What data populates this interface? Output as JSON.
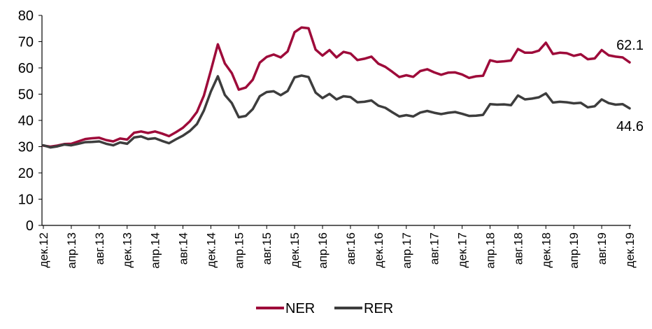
{
  "chart_data": {
    "type": "line",
    "title": "",
    "xlabel": "",
    "ylabel": "",
    "ylim": [
      0,
      80
    ],
    "yticks": [
      0,
      10,
      20,
      30,
      40,
      50,
      60,
      70,
      80
    ],
    "grid": false,
    "legend_position": "bottom-center",
    "x_tick_labels": [
      "дек.12",
      "апр.13",
      "авг.13",
      "дек.13",
      "апр.14",
      "авг.14",
      "дек.14",
      "апр.15",
      "авг.15",
      "дек.15",
      "апр.16",
      "авг.16",
      "дек.16",
      "апр.17",
      "авг.17",
      "дек.17",
      "апр.18",
      "авг.18",
      "дек.18",
      "апр.19",
      "авг.19",
      "дек.19"
    ],
    "annotations": [
      {
        "series": "NER",
        "text": "62.1"
      },
      {
        "series": "RER",
        "text": "44.6"
      }
    ],
    "series": [
      {
        "name": "NER",
        "color": "#9E0B3A",
        "values": [
          30.4,
          30.0,
          30.4,
          31.0,
          31.1,
          32.0,
          32.9,
          33.2,
          33.4,
          32.5,
          32.0,
          33.1,
          32.7,
          35.3,
          35.8,
          35.2,
          35.8,
          35.0,
          34.0,
          35.5,
          37.2,
          39.7,
          43.2,
          49.5,
          59.0,
          69.0,
          61.7,
          58.0,
          51.7,
          52.5,
          55.5,
          62.0,
          64.2,
          65.1,
          64.0,
          66.3,
          73.6,
          75.4,
          75.1,
          67.0,
          64.7,
          66.8,
          64.0,
          66.1,
          65.5,
          63.0,
          63.5,
          64.3,
          61.6,
          60.4,
          58.5,
          56.5,
          57.2,
          56.6,
          58.8,
          59.5,
          58.3,
          57.4,
          58.2,
          58.3,
          57.5,
          56.2,
          56.8,
          57.0,
          62.9,
          62.3,
          62.5,
          62.8,
          67.2,
          65.8,
          65.8,
          66.6,
          69.6,
          65.3,
          65.8,
          65.6,
          64.6,
          65.2,
          63.3,
          63.6,
          66.8,
          64.8,
          64.3,
          64.0,
          62.1
        ]
      },
      {
        "name": "RER",
        "color": "#3D3D3D",
        "values": [
          30.5,
          29.7,
          30.1,
          30.8,
          30.5,
          31.1,
          31.7,
          31.8,
          32.0,
          31.1,
          30.5,
          31.6,
          31.1,
          33.5,
          33.9,
          32.9,
          33.2,
          32.2,
          31.3,
          32.8,
          34.2,
          36.0,
          38.6,
          43.8,
          51.0,
          56.8,
          49.7,
          46.6,
          41.2,
          41.7,
          44.3,
          49.2,
          50.8,
          51.1,
          49.6,
          51.2,
          56.4,
          57.1,
          56.5,
          50.6,
          48.5,
          50.1,
          48.0,
          49.2,
          48.9,
          46.9,
          47.1,
          47.6,
          45.6,
          44.8,
          43.1,
          41.5,
          42.0,
          41.5,
          43.0,
          43.6,
          42.9,
          42.4,
          42.9,
          43.2,
          42.5,
          41.7,
          41.8,
          42.1,
          46.2,
          46.0,
          46.1,
          45.8,
          49.5,
          48.0,
          48.3,
          48.8,
          50.3,
          46.8,
          47.1,
          46.9,
          46.5,
          46.7,
          45.0,
          45.4,
          48.0,
          46.6,
          46.0,
          46.2,
          44.6
        ]
      }
    ]
  }
}
